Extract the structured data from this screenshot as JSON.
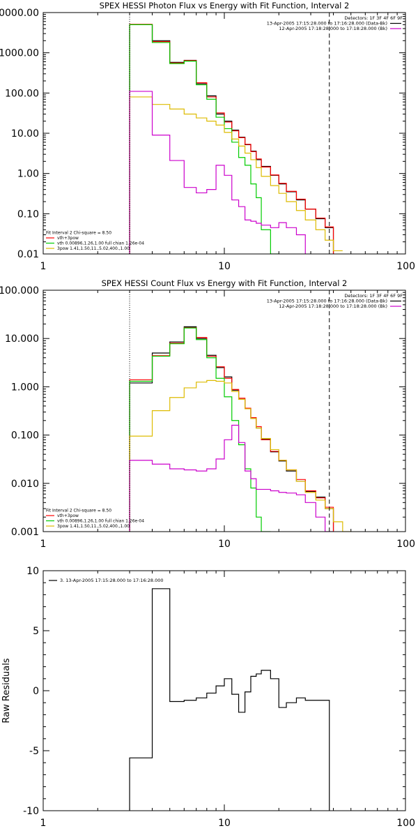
{
  "chart_data": [
    {
      "type": "line",
      "title": "SPEX HESSI Photon Flux vs Energy with Fit Function, Interval 2",
      "xlabel": "",
      "ylabel": "",
      "xscale": "log",
      "yscale": "log",
      "xlim": [
        1,
        100
      ],
      "ylim": [
        0.01,
        10000
      ],
      "x_ticks": [
        "1",
        "10",
        "100"
      ],
      "y_ticks": [
        "0.01",
        "0.10",
        "1.00",
        "10.00",
        "100.00",
        "1000.00",
        "10000.00"
      ],
      "y_tick_values": [
        0.01,
        0.1,
        1,
        10,
        100,
        1000,
        10000
      ],
      "legend_position": "top-right",
      "legend_lines": [
        {
          "text": "Detectors: 1F 3F 4F 6F 9F",
          "color": "#000000",
          "swatch": false
        },
        {
          "text": "13-Apr-2005 17:15:28.000 to 17:16:28.000 (Data-Bk)",
          "color": "#000000",
          "swatch": true
        },
        {
          "text": "12-Apr-2005 17:18:28.000 to 17:18:28.000 (Bk)",
          "color": "#cc00cc",
          "swatch": true
        }
      ],
      "fit_legend_position": "bottom-left",
      "fit_legend_lines": [
        {
          "text": "Fit Interval 2   Chi-square = 8.50",
          "color": "#000000",
          "swatch": false
        },
        {
          "text": "vth+3pow",
          "color": "#ff0000",
          "swatch": true
        },
        {
          "text": "vth 0.00896,1.26,1.00  full chian 1.26e-04",
          "color": "#00cc00",
          "swatch": true
        },
        {
          "text": "3pow 1.41,1.50,11.,5.02,400.,1.00",
          "color": "#ddbb00",
          "swatch": true
        }
      ],
      "vlines": [
        {
          "x": 3,
          "style": "dotted",
          "color": "#000000"
        },
        {
          "x": 38,
          "style": "dashed",
          "color": "#000000"
        }
      ],
      "bin_edges": [
        3,
        4,
        5,
        6,
        7,
        8,
        9,
        10,
        11,
        12,
        13,
        14,
        15,
        16,
        18,
        20,
        22,
        25,
        28,
        32,
        36,
        40,
        45
      ],
      "series": [
        {
          "name": "Data-Bk",
          "color": "#000000",
          "values": [
            5000,
            2000,
            580,
            650,
            170,
            85,
            30,
            20,
            12,
            8,
            5.2,
            3.6,
            2.2,
            1.5,
            0.9,
            0.55,
            0.35,
            0.22,
            0.13,
            0.075,
            0.045,
            null
          ]
        },
        {
          "name": "vth+3pow",
          "color": "#ff0000",
          "values": [
            5100,
            1900,
            560,
            640,
            180,
            80,
            32,
            19,
            11.5,
            7.8,
            5.3,
            3.5,
            2.3,
            1.45,
            0.92,
            0.57,
            0.36,
            0.23,
            0.13,
            0.078,
            0.047,
            null
          ]
        },
        {
          "name": "vth",
          "color": "#00cc00",
          "values": [
            5000,
            1800,
            540,
            620,
            160,
            70,
            25,
            13,
            6,
            2.5,
            1.6,
            0.55,
            0.25,
            0.04,
            0.005,
            null,
            null,
            null,
            null,
            null,
            null,
            null
          ]
        },
        {
          "name": "3pow",
          "color": "#ddbb00",
          "values": [
            80,
            52,
            40,
            30,
            24,
            20,
            16,
            10.5,
            7.2,
            4.8,
            3.2,
            2.2,
            1.4,
            0.85,
            0.5,
            0.32,
            0.2,
            0.12,
            0.07,
            0.04,
            0.022,
            0.012
          ]
        },
        {
          "name": "Bk",
          "color": "#cc00cc",
          "values": [
            110,
            9,
            2.1,
            0.45,
            0.33,
            0.4,
            1.6,
            0.9,
            0.22,
            0.15,
            0.07,
            0.065,
            0.058,
            0.052,
            0.045,
            0.06,
            0.045,
            0.03,
            null,
            null,
            null,
            null
          ]
        }
      ]
    },
    {
      "type": "line",
      "title": "SPEX HESSI Count Flux vs Energy with Fit Function, Interval 2",
      "xlabel": "",
      "ylabel": "",
      "xscale": "log",
      "yscale": "log",
      "xlim": [
        1,
        100
      ],
      "ylim": [
        0.001,
        100
      ],
      "x_ticks": [
        "1",
        "10",
        "100"
      ],
      "y_ticks": [
        "0.001",
        "0.010",
        "0.100",
        "1.000",
        "10.000",
        "100.000"
      ],
      "y_tick_values": [
        0.001,
        0.01,
        0.1,
        1,
        10,
        100
      ],
      "legend_position": "top-right",
      "legend_lines": [
        {
          "text": "Detectors: 1F 3F 4F 6F 9F",
          "color": "#000000",
          "swatch": false
        },
        {
          "text": "13-Apr-2005 17:15:28.000 to 17:16:28.000 (Data-Bk)",
          "color": "#000000",
          "swatch": true
        },
        {
          "text": "12-Apr-2005 17:18:28.000 to 17:18:28.000 (Bk)",
          "color": "#cc00cc",
          "swatch": true
        }
      ],
      "fit_legend_position": "bottom-left",
      "fit_legend_lines": [
        {
          "text": "Fit Interval 2   Chi-square = 8.50",
          "color": "#000000",
          "swatch": false
        },
        {
          "text": "vth+3pow",
          "color": "#ff0000",
          "swatch": true
        },
        {
          "text": "vth 0.00896,1.26,1.00  full chian 1.26e-04",
          "color": "#00cc00",
          "swatch": true
        },
        {
          "text": "3pow 1.41,1.50,11.,5.02,400.,1.00",
          "color": "#ddbb00",
          "swatch": true
        }
      ],
      "vlines": [
        {
          "x": 3,
          "style": "dotted",
          "color": "#000000"
        },
        {
          "x": 38,
          "style": "dashed",
          "color": "#000000"
        }
      ],
      "bin_edges": [
        3,
        4,
        5,
        6,
        7,
        8,
        9,
        10,
        11,
        12,
        13,
        14,
        15,
        16,
        18,
        20,
        22,
        25,
        28,
        32,
        36,
        40,
        45,
        50
      ],
      "series": [
        {
          "name": "Data-Bk",
          "color": "#000000",
          "values": [
            1.2,
            5,
            8.5,
            17.5,
            10,
            4.5,
            2.5,
            1.6,
            0.85,
            0.55,
            0.35,
            0.22,
            0.14,
            0.082,
            0.045,
            0.029,
            0.018,
            0.011,
            0.0068,
            0.0052,
            0.003,
            null,
            null
          ]
        },
        {
          "name": "vth+3pow",
          "color": "#ff0000",
          "values": [
            1.4,
            4.4,
            8,
            16.8,
            10.5,
            4.3,
            2.6,
            1.5,
            0.88,
            0.58,
            0.36,
            0.23,
            0.15,
            0.08,
            0.046,
            0.03,
            0.019,
            0.012,
            0.007,
            0.005,
            0.0032,
            null,
            null
          ]
        },
        {
          "name": "vth",
          "color": "#00cc00",
          "values": [
            1.3,
            4.3,
            7.8,
            16.5,
            9.5,
            4,
            1.5,
            0.62,
            0.2,
            0.063,
            0.02,
            0.008,
            0.002,
            0.001,
            null,
            null,
            null,
            null,
            null,
            null,
            null,
            null,
            null
          ]
        },
        {
          "name": "3pow",
          "color": "#ddbb00",
          "values": [
            0.095,
            0.32,
            0.6,
            0.95,
            1.25,
            1.35,
            1.3,
            1.2,
            0.8,
            0.55,
            0.35,
            0.22,
            0.14,
            0.085,
            0.05,
            0.03,
            0.019,
            0.011,
            0.0065,
            0.0045,
            0.003,
            0.0016,
            0.001
          ]
        },
        {
          "name": "Bk",
          "color": "#cc00cc",
          "values": [
            0.03,
            0.025,
            0.02,
            0.019,
            0.018,
            0.02,
            0.032,
            0.08,
            0.16,
            0.07,
            0.018,
            0.0125,
            0.0075,
            0.0075,
            0.007,
            0.0065,
            0.0063,
            0.0058,
            0.004,
            0.002,
            0.001,
            null,
            null
          ]
        }
      ]
    },
    {
      "type": "line",
      "title": "",
      "xlabel": "",
      "ylabel": "Raw Residuals",
      "xscale": "log",
      "yscale": "linear",
      "xlim": [
        1,
        100
      ],
      "ylim": [
        -10,
        10
      ],
      "x_ticks": [
        "1",
        "10",
        "100"
      ],
      "y_ticks": [
        "-10",
        "-5",
        "0",
        "5",
        "10"
      ],
      "y_tick_values": [
        -10,
        -5,
        0,
        5,
        10
      ],
      "legend_position": "top-left",
      "legend_lines": [
        {
          "text": "3. 13-Apr-2005 17:15:28.000 to 17:16:28.000",
          "color": "#000000",
          "swatch": true
        }
      ],
      "bin_edges": [
        3,
        4,
        5,
        6,
        7,
        8,
        9,
        10,
        11,
        12,
        13,
        14,
        15,
        16,
        18,
        20,
        22,
        25,
        28,
        32,
        36,
        38
      ],
      "series": [
        {
          "name": "3. 13-Apr-2005 17:15:28.000 to 17:16:28.000",
          "color": "#000000",
          "values": [
            -5.6,
            8.5,
            -0.9,
            -0.8,
            -0.6,
            -0.2,
            0.4,
            1.0,
            -0.3,
            -1.8,
            -0.1,
            1.2,
            1.4,
            1.7,
            1.0,
            -1.4,
            -1.0,
            -0.6,
            -0.8,
            -0.8,
            -0.8
          ]
        }
      ],
      "drop_to_ymin": true
    }
  ]
}
